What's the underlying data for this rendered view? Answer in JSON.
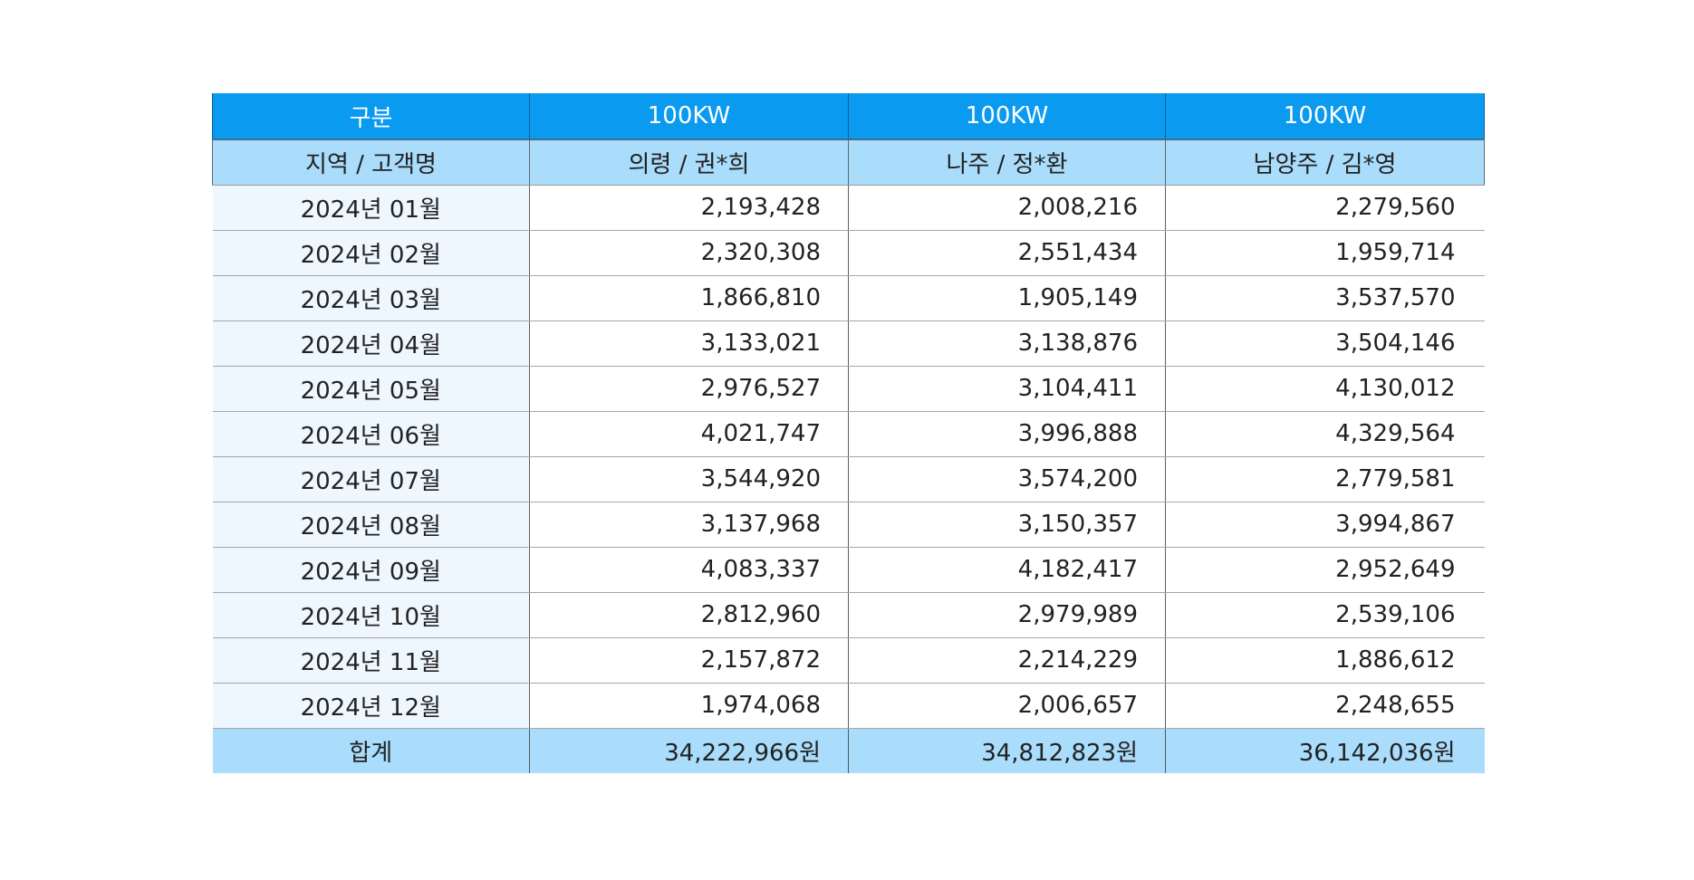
{
  "header": {
    "label": "구분",
    "columns": [
      "100KW",
      "100KW",
      "100KW"
    ]
  },
  "subheader": {
    "label": "지역 / 고객명",
    "columns": [
      "의령 / 권*희",
      "나주 / 정*환",
      "남양주 / 김*영"
    ]
  },
  "rows": [
    {
      "period": "2024년 01월",
      "values": [
        "2,193,428",
        "2,008,216",
        "2,279,560"
      ]
    },
    {
      "period": "2024년 02월",
      "values": [
        "2,320,308",
        "2,551,434",
        "1,959,714"
      ]
    },
    {
      "period": "2024년 03월",
      "values": [
        "1,866,810",
        "1,905,149",
        "3,537,570"
      ]
    },
    {
      "period": "2024년 04월",
      "values": [
        "3,133,021",
        "3,138,876",
        "3,504,146"
      ]
    },
    {
      "period": "2024년 05월",
      "values": [
        "2,976,527",
        "3,104,411",
        "4,130,012"
      ]
    },
    {
      "period": "2024년 06월",
      "values": [
        "4,021,747",
        "3,996,888",
        "4,329,564"
      ]
    },
    {
      "period": "2024년 07월",
      "values": [
        "3,544,920",
        "3,574,200",
        "2,779,581"
      ]
    },
    {
      "period": "2024년 08월",
      "values": [
        "3,137,968",
        "3,150,357",
        "3,994,867"
      ]
    },
    {
      "period": "2024년 09월",
      "values": [
        "4,083,337",
        "4,182,417",
        "2,952,649"
      ]
    },
    {
      "period": "2024년 10월",
      "values": [
        "2,812,960",
        "2,979,989",
        "2,539,106"
      ]
    },
    {
      "period": "2024년 11월",
      "values": [
        "2,157,872",
        "2,214,229",
        "1,886,612"
      ]
    },
    {
      "period": "2024년 12월",
      "values": [
        "1,974,068",
        "2,006,657",
        "2,248,655"
      ]
    }
  ],
  "total": {
    "label": "합계",
    "values": [
      "34,222,966원",
      "34,812,823원",
      "36,142,036원"
    ]
  },
  "colors": {
    "header_bg": "#0a9af0",
    "subheader_bg": "#aadcfb",
    "period_cell_bg": "#eef7fe"
  }
}
